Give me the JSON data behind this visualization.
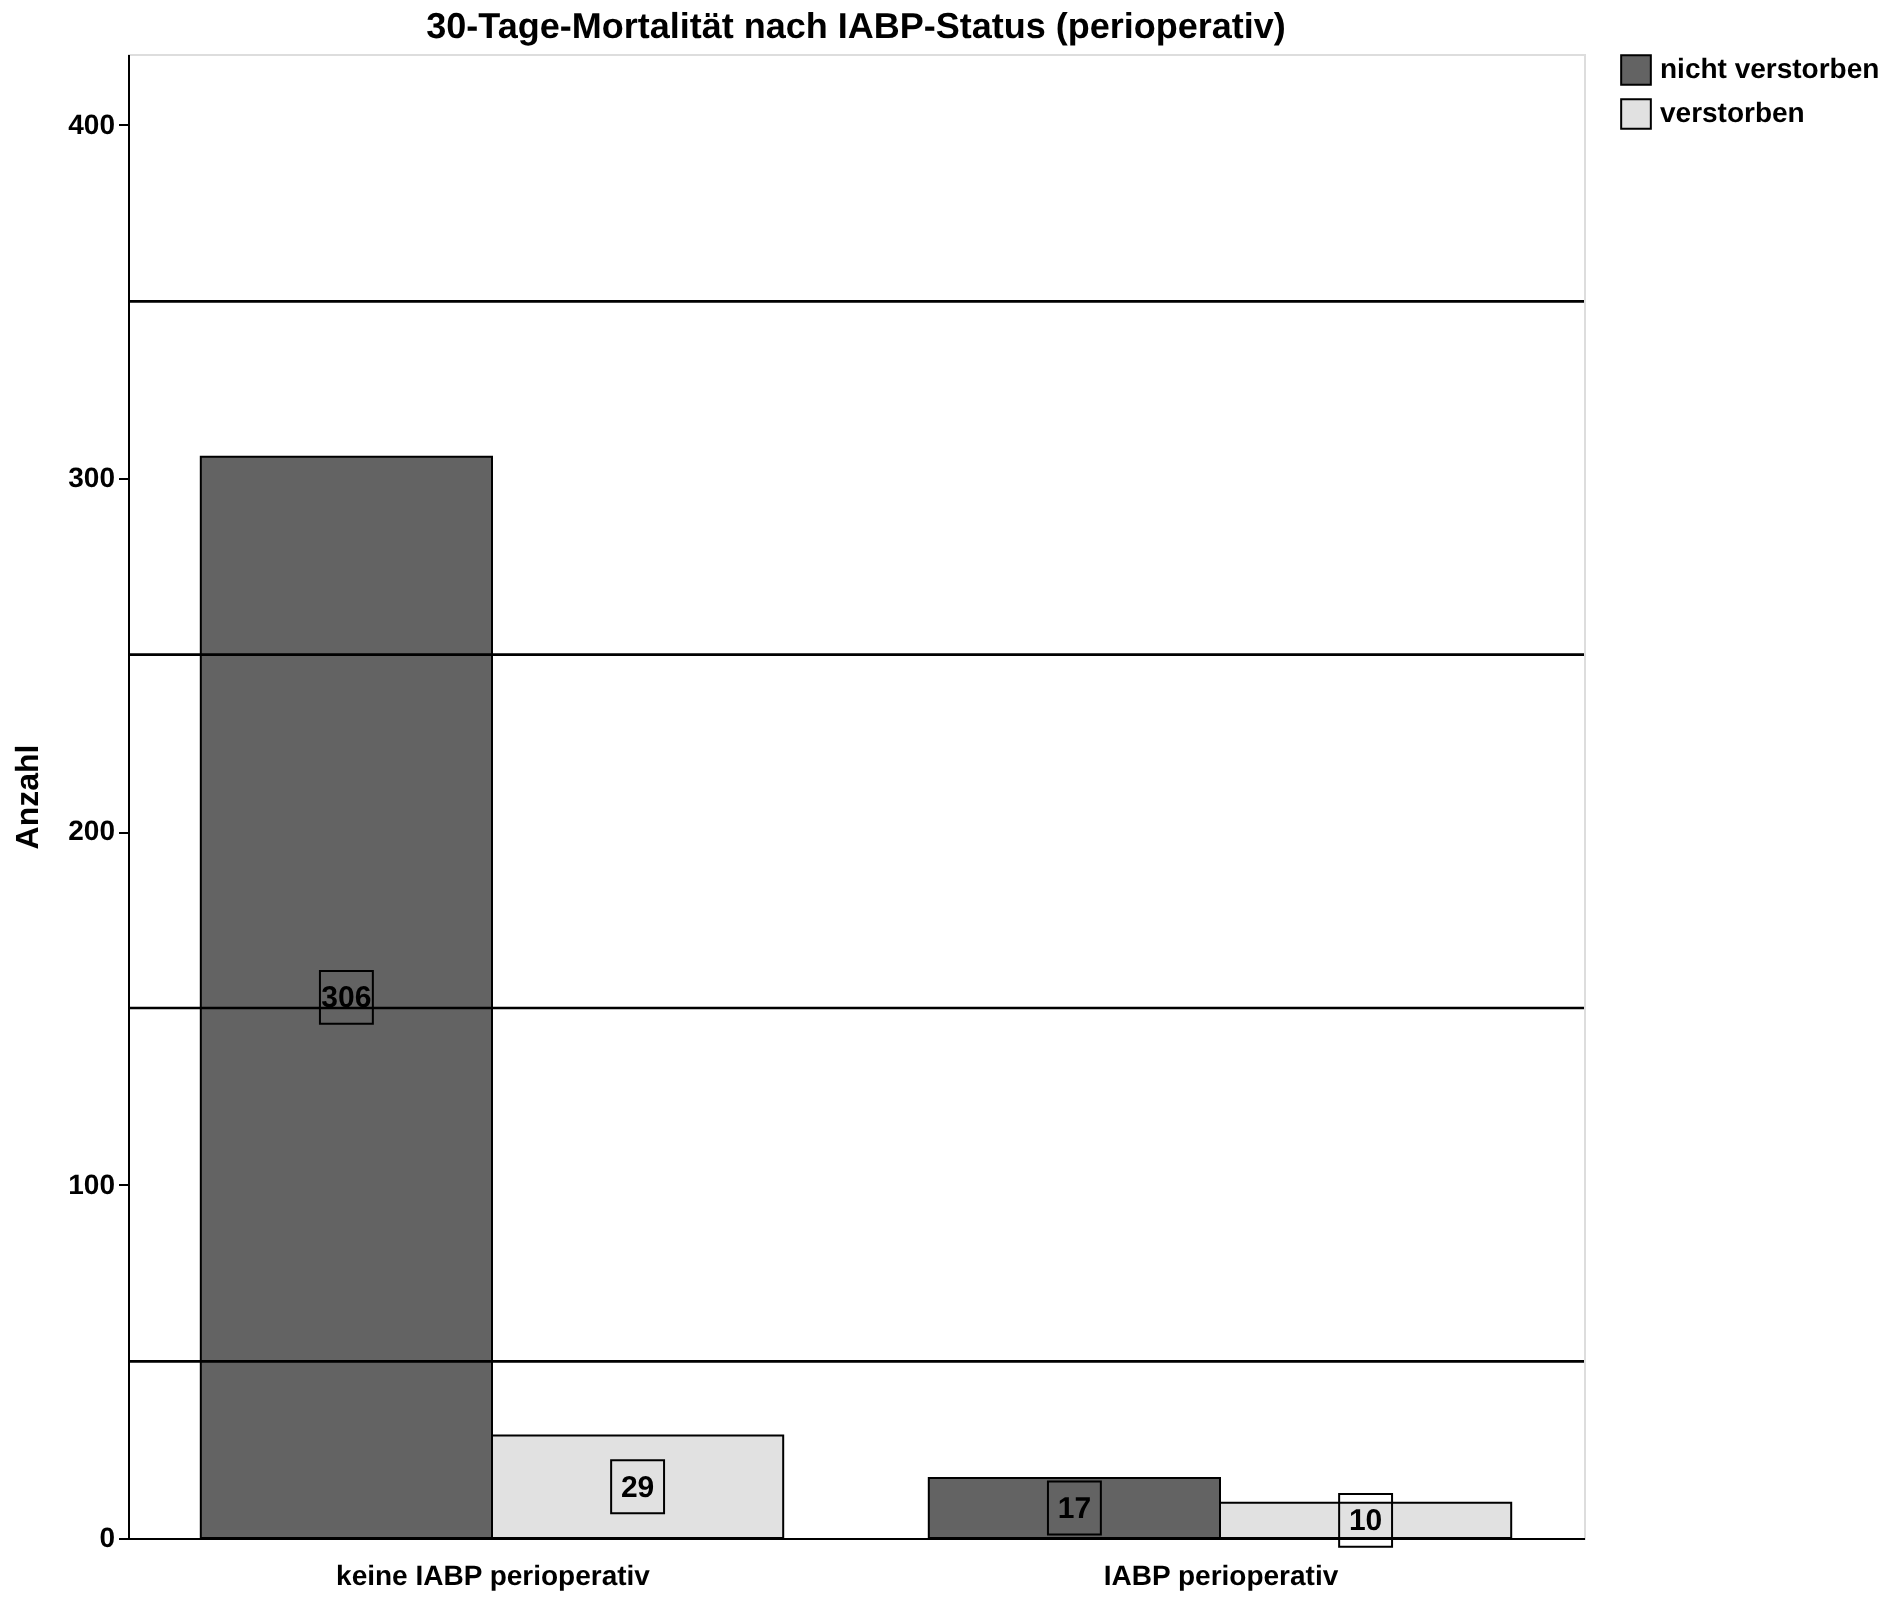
{
  "chart_data": {
    "type": "bar",
    "title": "30-Tage-Mortalität nach IABP-Status (perioperativ)",
    "ylabel": "Anzahl",
    "categories": [
      "keine IABP perioperativ",
      "IABP perioperativ"
    ],
    "series": [
      {
        "name": "nicht verstorben",
        "color": "#636363",
        "values": [
          306,
          17
        ]
      },
      {
        "name": "verstorben",
        "color": "#e1e1e1",
        "values": [
          29,
          10
        ]
      }
    ],
    "ylim": [
      0,
      420
    ],
    "yticks": [
      0,
      100,
      200,
      300,
      400
    ],
    "grid": false,
    "legend": "top right",
    "data_labels": true,
    "ref_lines": [
      {
        "axis": "y",
        "value": 50
      },
      {
        "axis": "y",
        "value": 150
      },
      {
        "axis": "y",
        "value": 250
      },
      {
        "axis": "y",
        "value": 350
      }
    ]
  }
}
